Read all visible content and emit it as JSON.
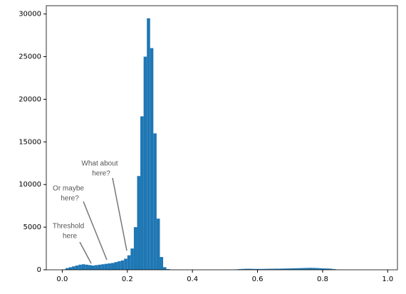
{
  "chart_data": {
    "type": "histogram",
    "bins": [
      0,
      0.01,
      0.02,
      0.03,
      0.04,
      0.05,
      0.06,
      0.07,
      0.08,
      0.09,
      0.1,
      0.11,
      0.12,
      0.13,
      0.14,
      0.15,
      0.16,
      0.17,
      0.18,
      0.19,
      0.2,
      0.21,
      0.22,
      0.23,
      0.24,
      0.25,
      0.26,
      0.27,
      0.28,
      0.29,
      0.3,
      0.31,
      0.32,
      0.33,
      0.34,
      0.35,
      0.36,
      0.37,
      0.38,
      0.39,
      0.4,
      0.41,
      0.42,
      0.43,
      0.44,
      0.45,
      0.46,
      0.47,
      0.48,
      0.49,
      0.5,
      0.51,
      0.52,
      0.53,
      0.54,
      0.55,
      0.56,
      0.57,
      0.58,
      0.59,
      0.6,
      0.61,
      0.62,
      0.63,
      0.64,
      0.65,
      0.66,
      0.67,
      0.68,
      0.69,
      0.7,
      0.71,
      0.72,
      0.73,
      0.74,
      0.75,
      0.76,
      0.77,
      0.78,
      0.79,
      0.8,
      0.81,
      0.82,
      0.83,
      0.84,
      0.85,
      0.86,
      0.87,
      0.88,
      0.89,
      0.9,
      0.91,
      0.92,
      0.93,
      0.94,
      0.95,
      0.96,
      0.97,
      0.98,
      0.99,
      1
    ],
    "values": [
      50,
      200,
      300,
      400,
      500,
      600,
      650,
      600,
      550,
      500,
      550,
      600,
      650,
      700,
      750,
      800,
      900,
      1000,
      1100,
      1300,
      1700,
      2500,
      5000,
      11000,
      18000,
      25000,
      29500,
      26000,
      16000,
      6000,
      1500,
      300,
      80,
      30,
      20,
      15,
      15,
      10,
      10,
      10,
      10,
      10,
      10,
      10,
      10,
      10,
      10,
      10,
      10,
      10,
      15,
      20,
      30,
      50,
      80,
      100,
      120,
      120,
      110,
      100,
      100,
      100,
      110,
      120,
      120,
      130,
      130,
      140,
      150,
      160,
      170,
      180,
      190,
      200,
      210,
      220,
      230,
      220,
      200,
      180,
      160,
      150,
      130,
      80,
      30,
      10,
      5,
      5,
      5,
      5,
      5,
      5,
      5,
      5,
      5,
      5,
      5,
      5,
      5,
      5
    ],
    "color": "#1f77b4",
    "xlim": [
      -0.049,
      1.03
    ],
    "ylim": [
      0,
      30975
    ],
    "xticks": [
      {
        "value": 0,
        "label": "0.0"
      },
      {
        "value": 0.2,
        "label": "0.2"
      },
      {
        "value": 0.4,
        "label": "0.4"
      },
      {
        "value": 0.6,
        "label": "0.6"
      },
      {
        "value": 0.8,
        "label": "0.8"
      },
      {
        "value": 1,
        "label": "1.0"
      }
    ],
    "yticks": [
      0,
      5000,
      10000,
      15000,
      20000,
      25000,
      30000
    ],
    "annotations": [
      {
        "lines": [
          "Threshold",
          "here"
        ]
      },
      {
        "lines": [
          "Or maybe",
          "here?"
        ]
      },
      {
        "lines": [
          "What about",
          "here?"
        ]
      }
    ]
  }
}
